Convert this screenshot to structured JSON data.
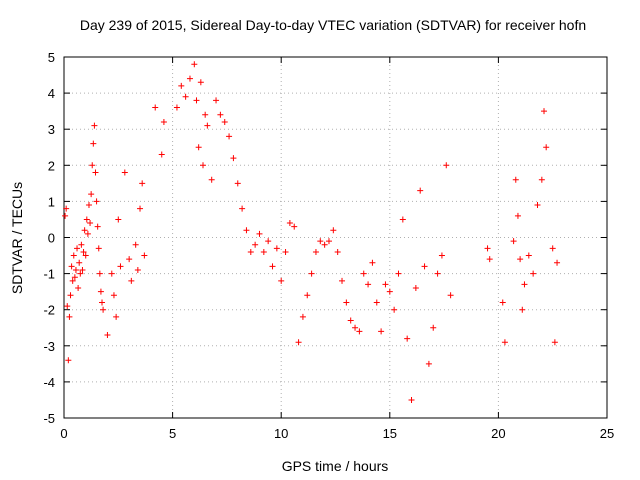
{
  "chart_data": {
    "type": "scatter",
    "title": "Day 239 of 2015, Sidereal Day-to-day VTEC variation (SDTVAR) for receiver hofn",
    "xlabel": "GPS time / hours",
    "ylabel": "SDTVAR / TECUs",
    "xlim": [
      0,
      25
    ],
    "ylim": [
      -5,
      5
    ],
    "xticks": [
      0,
      5,
      10,
      15,
      20,
      25
    ],
    "yticks": [
      -5,
      -4,
      -3,
      -2,
      -1,
      0,
      1,
      2,
      3,
      4,
      5
    ],
    "grid": true,
    "marker": "+",
    "color": "#ff0000",
    "series": [
      {
        "name": "SDTVAR",
        "points": [
          [
            0.05,
            0.6
          ],
          [
            0.1,
            0.8
          ],
          [
            0.15,
            -1.9
          ],
          [
            0.2,
            -3.4
          ],
          [
            0.25,
            -2.2
          ],
          [
            0.3,
            -1.6
          ],
          [
            0.35,
            -0.8
          ],
          [
            0.4,
            -1.2
          ],
          [
            0.45,
            -0.5
          ],
          [
            0.5,
            -1.1
          ],
          [
            0.55,
            -0.9
          ],
          [
            0.6,
            -0.3
          ],
          [
            0.65,
            -1.4
          ],
          [
            0.7,
            -0.7
          ],
          [
            0.75,
            -1.0
          ],
          [
            0.8,
            -0.2
          ],
          [
            0.85,
            -0.9
          ],
          [
            0.9,
            -0.4
          ],
          [
            0.95,
            0.2
          ],
          [
            1.0,
            -0.5
          ],
          [
            1.05,
            0.5
          ],
          [
            1.1,
            0.1
          ],
          [
            1.15,
            0.9
          ],
          [
            1.2,
            0.4
          ],
          [
            1.25,
            1.2
          ],
          [
            1.3,
            2.0
          ],
          [
            1.35,
            2.6
          ],
          [
            1.4,
            3.1
          ],
          [
            1.45,
            1.8
          ],
          [
            1.5,
            1.0
          ],
          [
            1.55,
            0.3
          ],
          [
            1.6,
            -0.3
          ],
          [
            1.65,
            -1.0
          ],
          [
            1.7,
            -1.5
          ],
          [
            1.75,
            -1.8
          ],
          [
            1.8,
            -2.0
          ],
          [
            2.0,
            -2.7
          ],
          [
            2.2,
            -1.0
          ],
          [
            2.3,
            -1.6
          ],
          [
            2.4,
            -2.2
          ],
          [
            2.5,
            0.5
          ],
          [
            2.6,
            -0.8
          ],
          [
            2.8,
            1.8
          ],
          [
            3.0,
            -0.6
          ],
          [
            3.1,
            -1.2
          ],
          [
            3.3,
            -0.2
          ],
          [
            3.4,
            -0.9
          ],
          [
            3.5,
            0.8
          ],
          [
            3.6,
            1.5
          ],
          [
            3.7,
            -0.5
          ],
          [
            4.2,
            3.6
          ],
          [
            4.5,
            2.3
          ],
          [
            4.6,
            3.2
          ],
          [
            5.2,
            3.6
          ],
          [
            5.4,
            4.2
          ],
          [
            5.6,
            3.9
          ],
          [
            5.8,
            4.4
          ],
          [
            6.0,
            4.8
          ],
          [
            6.1,
            3.8
          ],
          [
            6.2,
            2.5
          ],
          [
            6.3,
            4.3
          ],
          [
            6.4,
            2.0
          ],
          [
            6.5,
            3.4
          ],
          [
            6.6,
            3.1
          ],
          [
            6.8,
            1.6
          ],
          [
            7.0,
            3.8
          ],
          [
            7.2,
            3.4
          ],
          [
            7.4,
            3.2
          ],
          [
            7.6,
            2.8
          ],
          [
            7.8,
            2.2
          ],
          [
            8.0,
            1.5
          ],
          [
            8.2,
            0.8
          ],
          [
            8.4,
            0.2
          ],
          [
            8.6,
            -0.4
          ],
          [
            8.8,
            -0.2
          ],
          [
            9.0,
            0.1
          ],
          [
            9.2,
            -0.4
          ],
          [
            9.4,
            -0.1
          ],
          [
            9.6,
            -0.8
          ],
          [
            9.8,
            -0.3
          ],
          [
            10.0,
            -1.2
          ],
          [
            10.2,
            -0.4
          ],
          [
            10.4,
            0.4
          ],
          [
            10.6,
            0.3
          ],
          [
            10.8,
            -2.9
          ],
          [
            11.0,
            -2.2
          ],
          [
            11.2,
            -1.6
          ],
          [
            11.4,
            -1.0
          ],
          [
            11.6,
            -0.4
          ],
          [
            11.8,
            -0.1
          ],
          [
            12.0,
            -0.2
          ],
          [
            12.2,
            -0.1
          ],
          [
            12.4,
            0.2
          ],
          [
            12.6,
            -0.4
          ],
          [
            12.8,
            -1.2
          ],
          [
            13.0,
            -1.8
          ],
          [
            13.2,
            -2.3
          ],
          [
            13.4,
            -2.5
          ],
          [
            13.6,
            -2.6
          ],
          [
            13.8,
            -1.0
          ],
          [
            14.0,
            -1.3
          ],
          [
            14.2,
            -0.7
          ],
          [
            14.4,
            -1.8
          ],
          [
            14.6,
            -2.6
          ],
          [
            14.8,
            -1.3
          ],
          [
            15.0,
            -1.5
          ],
          [
            15.2,
            -2.0
          ],
          [
            15.4,
            -1.0
          ],
          [
            15.6,
            0.5
          ],
          [
            15.8,
            -2.8
          ],
          [
            16.0,
            -4.5
          ],
          [
            16.2,
            -1.4
          ],
          [
            16.4,
            1.3
          ],
          [
            16.6,
            -0.8
          ],
          [
            16.8,
            -3.5
          ],
          [
            17.0,
            -2.5
          ],
          [
            17.2,
            -1.0
          ],
          [
            17.4,
            -0.5
          ],
          [
            17.6,
            2.0
          ],
          [
            17.8,
            -1.6
          ],
          [
            19.5,
            -0.3
          ],
          [
            19.6,
            -0.6
          ],
          [
            20.2,
            -1.8
          ],
          [
            20.3,
            -2.9
          ],
          [
            20.7,
            -0.1
          ],
          [
            20.8,
            1.6
          ],
          [
            20.9,
            0.6
          ],
          [
            21.0,
            -0.6
          ],
          [
            21.1,
            -2.0
          ],
          [
            21.2,
            -1.3
          ],
          [
            21.4,
            -0.5
          ],
          [
            21.6,
            -1.0
          ],
          [
            21.8,
            0.9
          ],
          [
            22.0,
            1.6
          ],
          [
            22.2,
            2.5
          ],
          [
            22.1,
            3.5
          ],
          [
            22.5,
            -0.3
          ],
          [
            22.6,
            -2.9
          ],
          [
            22.7,
            -0.7
          ]
        ]
      }
    ]
  }
}
